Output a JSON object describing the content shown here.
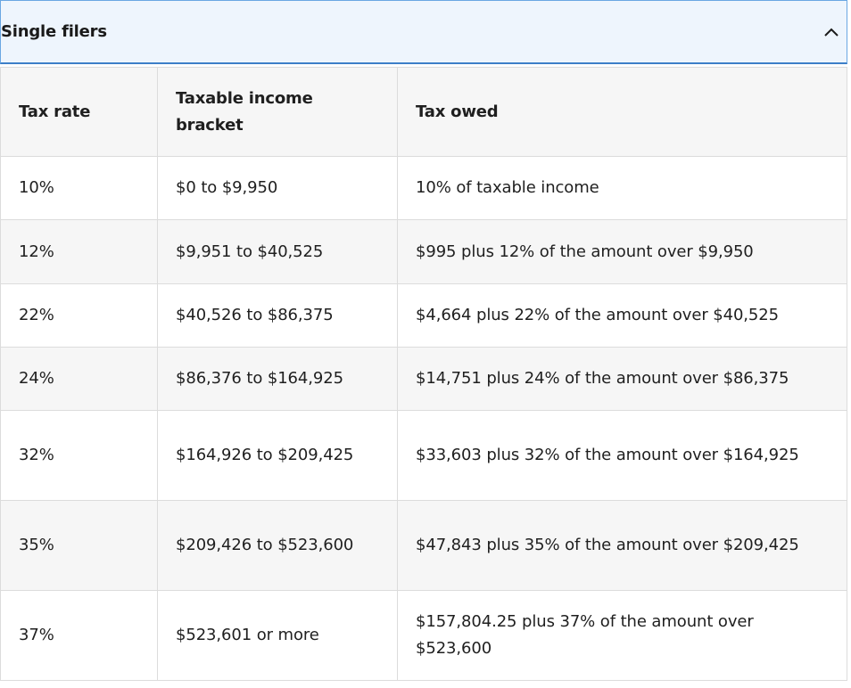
{
  "accordion": {
    "title": "Single filers",
    "toggle_icon": "chevron-up-icon",
    "expanded": true
  },
  "table": {
    "headers": [
      "Tax rate",
      "Taxable income bracket",
      "Tax owed"
    ],
    "rows": [
      {
        "rate": "10%",
        "bracket": "$0 to $9,950",
        "owed": "10% of taxable income"
      },
      {
        "rate": "12%",
        "bracket": "$9,951 to $40,525",
        "owed": "$995 plus 12% of the amount over $9,950"
      },
      {
        "rate": "22%",
        "bracket": "$40,526 to $86,375",
        "owed": "$4,664 plus 22% of the amount over $40,525"
      },
      {
        "rate": "24%",
        "bracket": "$86,376 to $164,925",
        "owed": "$14,751 plus 24% of the amount over $86,375"
      },
      {
        "rate": "32%",
        "bracket": "$164,926 to $209,425",
        "owed": "$33,603 plus 32% of the amount over $164,925"
      },
      {
        "rate": "35%",
        "bracket": "$209,426 to $523,600",
        "owed": "$47,843 plus 35% of the amount over $209,425"
      },
      {
        "rate": "37%",
        "bracket": "$523,601 or more",
        "owed": "$157,804.25 plus 37% of the amount over $523,600"
      }
    ]
  },
  "colors": {
    "header_bg": "#eef5fd",
    "header_border": "#3d7fc8",
    "row_alt_bg": "#f6f6f6",
    "grid": "#dcdcdc"
  }
}
